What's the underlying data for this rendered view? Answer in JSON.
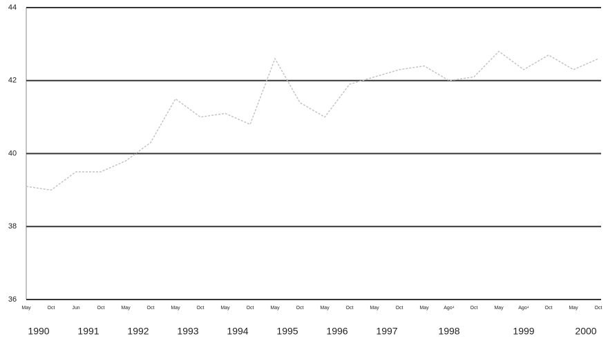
{
  "chart_data": {
    "type": "line",
    "categories": [
      "May",
      "Oct",
      "Jun",
      "Oct",
      "May",
      "Oct",
      "May",
      "Oct",
      "May",
      "Oct",
      "May",
      "Oct",
      "May",
      "Oct",
      "May",
      "Oct",
      "May",
      "Ago⁴",
      "Oct",
      "May",
      "Ago⁴",
      "Oct",
      "May",
      "Oct"
    ],
    "year_labels": [
      "1990",
      "1991",
      "1992",
      "1993",
      "1994",
      "1995",
      "1996",
      "1997",
      "1998",
      "1999",
      "2000"
    ],
    "values": [
      39.1,
      39.0,
      39.5,
      39.5,
      39.8,
      40.3,
      41.5,
      41.0,
      41.1,
      40.8,
      42.6,
      41.4,
      41.0,
      41.9,
      42.1,
      42.3,
      42.4,
      42.0,
      42.1,
      42.8,
      42.3,
      42.7,
      42.3,
      42.6
    ],
    "color": "#c4c4c4",
    "ylim": [
      36,
      44
    ],
    "yticks": [
      36,
      38,
      40,
      42,
      44
    ],
    "grid": true
  }
}
